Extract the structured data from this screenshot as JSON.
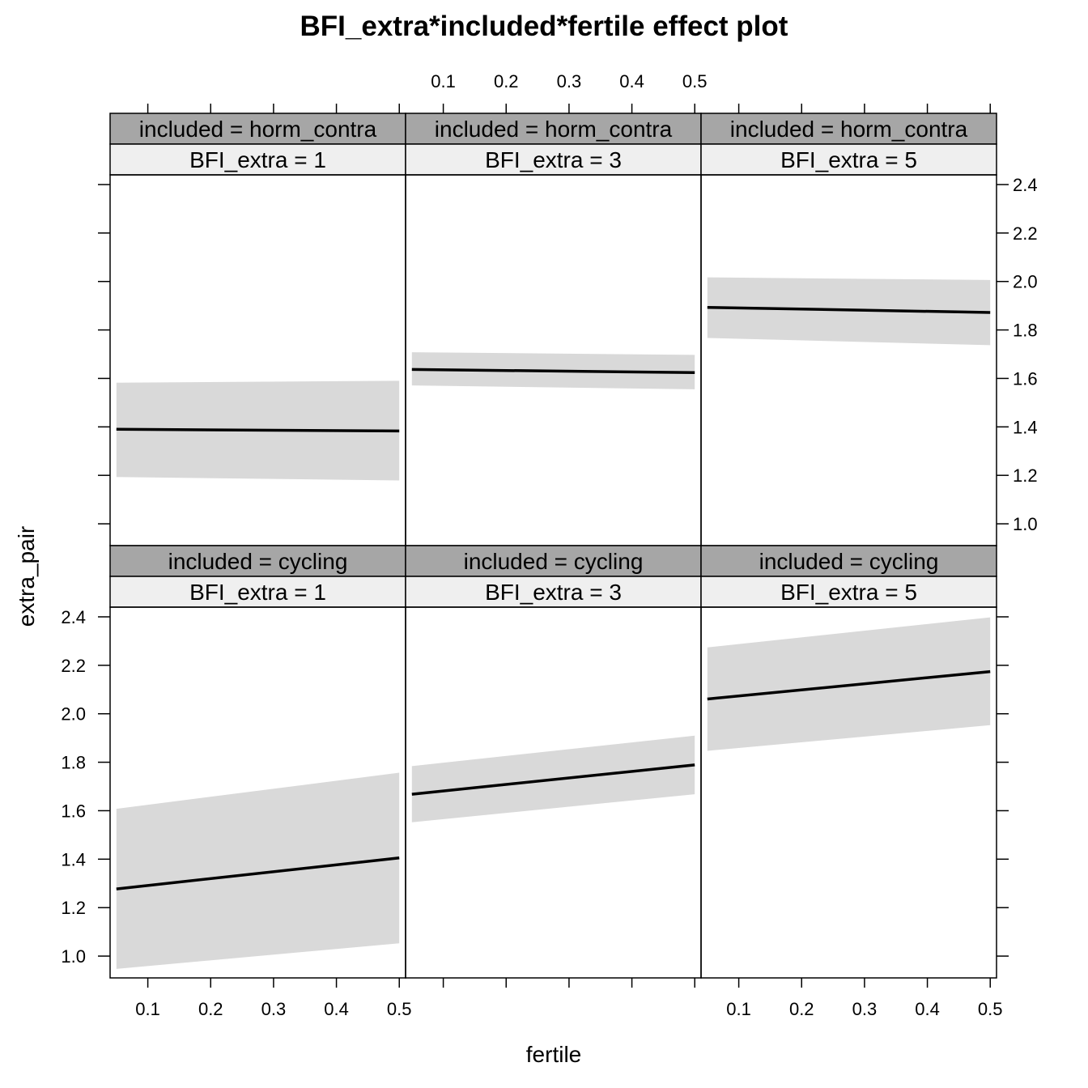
{
  "chart_data": {
    "type": "line",
    "title": "BFI_extra*included*fertile effect plot",
    "xlabel": "fertile",
    "ylabel": "extra_pair",
    "xlim": [
      0.04,
      0.51
    ],
    "ylim": [
      0.91,
      2.44
    ],
    "x_ticks": [
      0.1,
      0.2,
      0.3,
      0.4,
      0.5
    ],
    "x_tick_labels": [
      "0.1",
      "0.2",
      "0.3",
      "0.4",
      "0.5"
    ],
    "y_ticks": [
      1.0,
      1.2,
      1.4,
      1.6,
      1.8,
      2.0,
      2.2,
      2.4
    ],
    "y_tick_labels": [
      "1.0",
      "1.2",
      "1.4",
      "1.6",
      "1.8",
      "2.0",
      "2.2",
      "2.4"
    ],
    "grid": false,
    "band_color": "#d9d9d9",
    "line_color": "#000000",
    "strip_outer_color": "#a6a6a6",
    "strip_inner_color": "#efefef",
    "panels": [
      {
        "row": 0,
        "col": 0,
        "strip_outer": "included = horm_contra",
        "strip_inner": "BFI_extra = 1",
        "x": [
          0.05,
          0.5
        ],
        "fit": [
          1.39,
          1.383
        ],
        "lower": [
          1.193,
          1.179
        ],
        "upper": [
          1.582,
          1.59
        ]
      },
      {
        "row": 0,
        "col": 1,
        "strip_outer": "included = horm_contra",
        "strip_inner": "BFI_extra = 3",
        "x": [
          0.05,
          0.5
        ],
        "fit": [
          1.637,
          1.624
        ],
        "lower": [
          1.571,
          1.555
        ],
        "upper": [
          1.708,
          1.697
        ]
      },
      {
        "row": 0,
        "col": 2,
        "strip_outer": "included = horm_contra",
        "strip_inner": "BFI_extra = 5",
        "x": [
          0.05,
          0.5
        ],
        "fit": [
          1.893,
          1.872
        ],
        "lower": [
          1.767,
          1.737
        ],
        "upper": [
          2.017,
          2.006
        ]
      },
      {
        "row": 1,
        "col": 0,
        "strip_outer": "included = cycling",
        "strip_inner": "BFI_extra = 1",
        "x": [
          0.05,
          0.5
        ],
        "fit": [
          1.277,
          1.405
        ],
        "lower": [
          0.947,
          1.053
        ],
        "upper": [
          1.608,
          1.757
        ]
      },
      {
        "row": 1,
        "col": 1,
        "strip_outer": "included = cycling",
        "strip_inner": "BFI_extra = 3",
        "x": [
          0.05,
          0.5
        ],
        "fit": [
          1.668,
          1.789
        ],
        "lower": [
          1.552,
          1.668
        ],
        "upper": [
          1.784,
          1.91
        ]
      },
      {
        "row": 1,
        "col": 2,
        "strip_outer": "included = cycling",
        "strip_inner": "BFI_extra = 5",
        "x": [
          0.05,
          0.5
        ],
        "fit": [
          2.061,
          2.174
        ],
        "lower": [
          1.847,
          1.953
        ],
        "upper": [
          2.274,
          2.398
        ]
      }
    ]
  }
}
